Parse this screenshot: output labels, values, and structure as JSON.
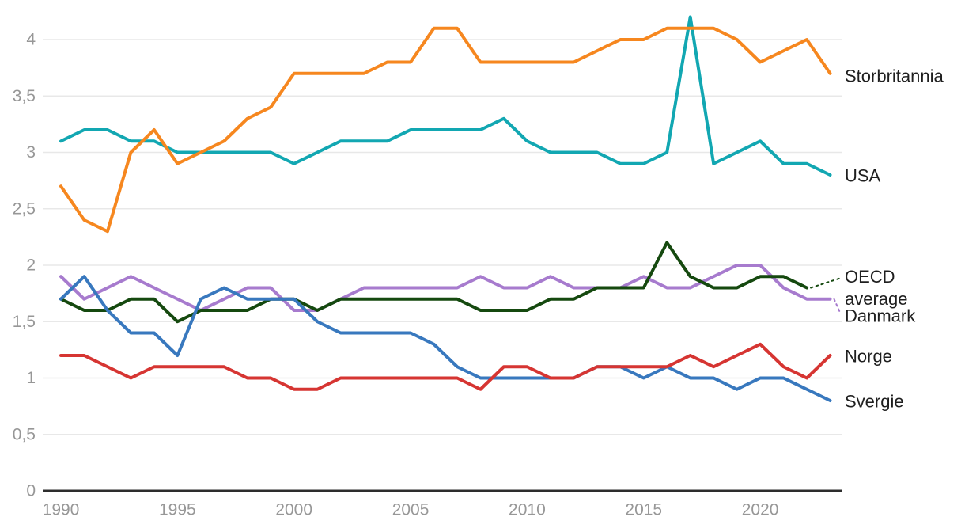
{
  "chart_data": {
    "type": "line",
    "title": "",
    "xlabel": "",
    "ylabel": "",
    "grid": true,
    "legend_position": "right-end-labels",
    "decimal_separator": ",",
    "ylim": [
      0,
      4.35
    ],
    "x": [
      1990,
      1991,
      1992,
      1993,
      1994,
      1995,
      1996,
      1997,
      1998,
      1999,
      2000,
      2001,
      2002,
      2003,
      2004,
      2005,
      2006,
      2007,
      2008,
      2009,
      2010,
      2011,
      2012,
      2013,
      2014,
      2015,
      2016,
      2017,
      2018,
      2019,
      2020,
      2021,
      2022,
      2023
    ],
    "xticks": [
      {
        "label": "1990",
        "value": 1990
      },
      {
        "label": "1995",
        "value": 1995
      },
      {
        "label": "2000",
        "value": 2000
      },
      {
        "label": "2005",
        "value": 2005
      },
      {
        "label": "2010",
        "value": 2010
      },
      {
        "label": "2015",
        "value": 2015
      },
      {
        "label": "2020",
        "value": 2020
      }
    ],
    "yticks": [
      {
        "label": "0",
        "value": 0
      },
      {
        "label": "0,5",
        "value": 0.5
      },
      {
        "label": "1",
        "value": 1
      },
      {
        "label": "1,5",
        "value": 1.5
      },
      {
        "label": "2",
        "value": 2
      },
      {
        "label": "2,5",
        "value": 2.5
      },
      {
        "label": "3",
        "value": 3
      },
      {
        "label": "3,5",
        "value": 3.5
      },
      {
        "label": "4",
        "value": 4
      }
    ],
    "axis_colors": {
      "gridline": "#e8e8e8",
      "axis_line": "#2d2d2d",
      "tick_text": "#979797",
      "label_text": "#1f1f1f"
    },
    "series": [
      {
        "name": "Storbritannia",
        "label_lines": [
          "Storbritannia"
        ],
        "color": "#f6871f",
        "leader": false,
        "label_dy": 3,
        "values": [
          2.7,
          2.4,
          2.3,
          3.0,
          3.2,
          2.9,
          3.0,
          3.1,
          3.3,
          3.4,
          3.7,
          3.7,
          3.7,
          3.7,
          3.8,
          3.8,
          4.1,
          4.1,
          3.8,
          3.8,
          3.8,
          3.8,
          3.8,
          3.9,
          4.0,
          4.0,
          4.1,
          4.1,
          4.1,
          4.0,
          3.8,
          3.9,
          4.0,
          3.7
        ]
      },
      {
        "name": "USA",
        "label_lines": [
          "USA"
        ],
        "color": "#12a7b2",
        "leader": false,
        "label_dy": 1,
        "values": [
          3.1,
          3.2,
          3.2,
          3.1,
          3.1,
          3.0,
          3.0,
          3.0,
          3.0,
          3.0,
          2.9,
          3.0,
          3.1,
          3.1,
          3.1,
          3.2,
          3.2,
          3.2,
          3.2,
          3.3,
          3.1,
          3.0,
          3.0,
          3.0,
          2.9,
          2.9,
          3.0,
          4.2,
          2.9,
          3.0,
          3.1,
          2.9,
          2.9,
          2.8
        ]
      },
      {
        "name": "OECD average",
        "label_lines": [
          "OECD",
          "average"
        ],
        "color": "#15490f",
        "leader": true,
        "label_dy": 0,
        "values": [
          1.7,
          1.6,
          1.6,
          1.7,
          1.7,
          1.5,
          1.6,
          1.6,
          1.6,
          1.7,
          1.7,
          1.6,
          1.7,
          1.7,
          1.7,
          1.7,
          1.7,
          1.7,
          1.6,
          1.6,
          1.6,
          1.7,
          1.7,
          1.8,
          1.8,
          1.8,
          2.2,
          1.9,
          1.8,
          1.8,
          1.9,
          1.9,
          1.8,
          null
        ]
      },
      {
        "name": "Danmark",
        "label_lines": [
          "Danmark"
        ],
        "color": "#a77bce",
        "leader": true,
        "label_dy": 21,
        "values": [
          1.9,
          1.7,
          1.8,
          1.9,
          1.8,
          1.7,
          1.6,
          1.7,
          1.8,
          1.8,
          1.6,
          1.6,
          1.7,
          1.8,
          1.8,
          1.8,
          1.8,
          1.8,
          1.9,
          1.8,
          1.8,
          1.9,
          1.8,
          1.8,
          1.8,
          1.9,
          1.8,
          1.8,
          1.9,
          2.0,
          2.0,
          1.8,
          1.7,
          1.7
        ]
      },
      {
        "name": "Norge",
        "label_lines": [
          "Norge"
        ],
        "color": "#d63532",
        "leader": false,
        "label_dy": 1,
        "values": [
          1.2,
          1.2,
          1.1,
          1.0,
          1.1,
          1.1,
          1.1,
          1.1,
          1.0,
          1.0,
          0.9,
          0.9,
          1.0,
          1.0,
          1.0,
          1.0,
          1.0,
          1.0,
          0.9,
          1.1,
          1.1,
          1.0,
          1.0,
          1.1,
          1.1,
          1.1,
          1.1,
          1.2,
          1.1,
          1.2,
          1.3,
          1.1,
          1.0,
          1.2
        ]
      },
      {
        "name": "Svergie",
        "label_lines": [
          "Svergie"
        ],
        "color": "#3878be",
        "leader": false,
        "label_dy": 1,
        "values": [
          1.7,
          1.9,
          1.6,
          1.4,
          1.4,
          1.2,
          1.7,
          1.8,
          1.7,
          1.7,
          1.7,
          1.5,
          1.4,
          1.4,
          1.4,
          1.4,
          1.3,
          1.1,
          1.0,
          1.0,
          1.0,
          1.0,
          1.0,
          1.1,
          1.1,
          1.0,
          1.1,
          1.0,
          1.0,
          0.9,
          1.0,
          1.0,
          0.9,
          0.8
        ]
      }
    ]
  }
}
